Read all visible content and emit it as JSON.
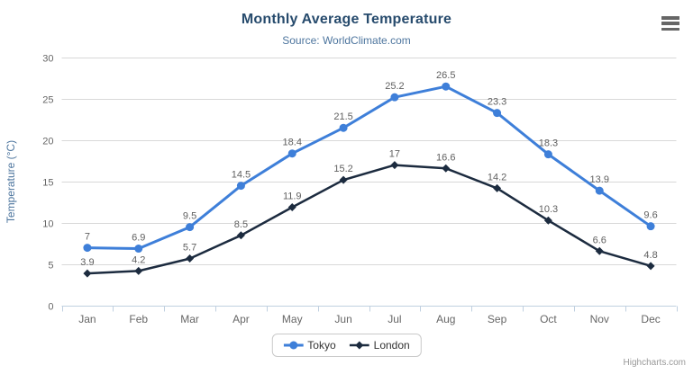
{
  "credits": "Highcharts.com",
  "icons": {
    "context_menu": "hamburger-menu-icon"
  },
  "ui_colors": {
    "title": "#274b6d",
    "subtitle": "#4d759e",
    "axis_labels": "#666666",
    "gridline": "#d8d8d8",
    "axis_line": "#c0d0e0",
    "data_label": "#606060"
  },
  "chart_data": {
    "type": "line",
    "title": "Monthly Average Temperature",
    "subtitle": "Source: WorldClimate.com",
    "categories": [
      "Jan",
      "Feb",
      "Mar",
      "Apr",
      "May",
      "Jun",
      "Jul",
      "Aug",
      "Sep",
      "Oct",
      "Nov",
      "Dec"
    ],
    "series": [
      {
        "name": "Tokyo",
        "color": "#3e7fd9",
        "marker": "circle",
        "values": [
          7,
          6.9,
          9.5,
          14.5,
          18.4,
          21.5,
          25.2,
          26.5,
          23.3,
          18.3,
          13.9,
          9.6
        ]
      },
      {
        "name": "London",
        "color": "#1c2b3f",
        "marker": "diamond",
        "values": [
          3.9,
          4.2,
          5.7,
          8.5,
          11.9,
          15.2,
          17,
          16.6,
          14.2,
          10.3,
          6.6,
          4.8
        ]
      }
    ],
    "xlabel": "",
    "ylabel": "Temperature (°C)",
    "ylim": [
      0,
      30
    ],
    "yticks": [
      0,
      5,
      10,
      15,
      20,
      25,
      30
    ],
    "grid": true,
    "data_labels": true,
    "legend_position": "bottom"
  }
}
